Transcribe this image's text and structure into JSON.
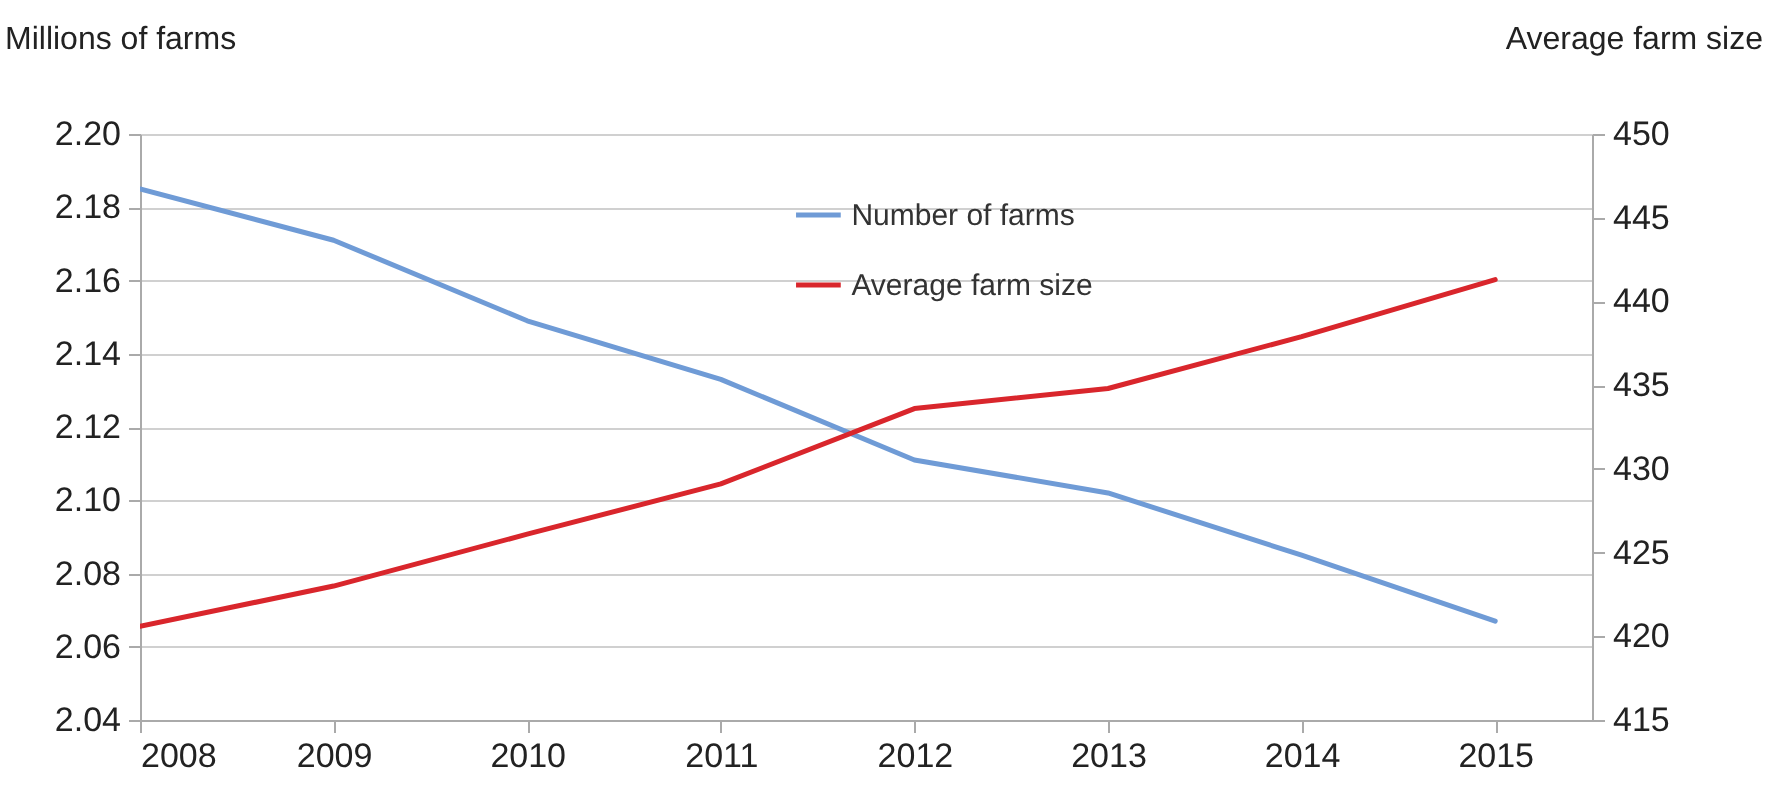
{
  "chart_data": {
    "type": "line",
    "xlabel": null,
    "ylabel": "Millions of farms",
    "y2label": "Average farm size",
    "x": [
      2008,
      2009,
      2010,
      2011,
      2012,
      2013,
      2014,
      2015
    ],
    "series": [
      {
        "name": "Number of farms",
        "color": "#6f9bd6",
        "values": [
          2.185,
          2.171,
          2.149,
          2.133,
          2.111,
          2.102,
          2.085,
          2.067
        ]
      },
      {
        "name": "Average farm size",
        "color": "#d9262c",
        "axis": "y2",
        "values": [
          420.6,
          423.0,
          426.1,
          429.1,
          433.6,
          434.8,
          437.9,
          441.3
        ]
      }
    ],
    "xlim": [
      2008,
      2015.5
    ],
    "xticks": [
      2008,
      2009,
      2010,
      2011,
      2012,
      2013,
      2014,
      2015
    ],
    "ylim": [
      2.04,
      2.2
    ],
    "yticks": [
      {
        "value": 2.04,
        "label": "2.04"
      },
      {
        "value": 2.06,
        "label": "2.06"
      },
      {
        "value": 2.08,
        "label": "2.08"
      },
      {
        "value": 2.1,
        "label": "2.10"
      },
      {
        "value": 2.12,
        "label": "2.12"
      },
      {
        "value": 2.14,
        "label": "2.14"
      },
      {
        "value": 2.16,
        "label": "2.16"
      },
      {
        "value": 2.18,
        "label": "2.18"
      },
      {
        "value": 2.2,
        "label": "2.20"
      }
    ],
    "y2lim": [
      415,
      450
    ],
    "y2ticks": [
      415,
      420,
      425,
      430,
      435,
      440,
      445,
      450
    ],
    "grid": "y",
    "legend": "top",
    "marker": "none",
    "line_style": "solid"
  }
}
